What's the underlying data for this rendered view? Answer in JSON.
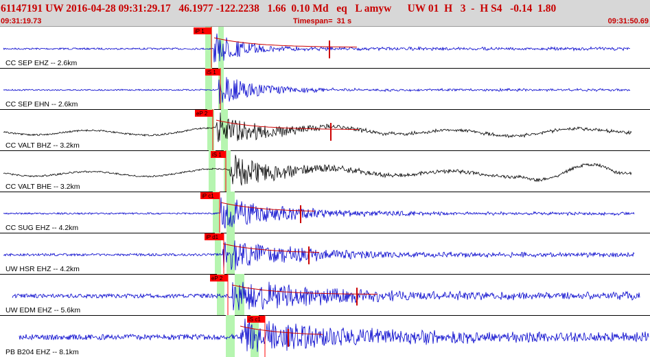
{
  "header": {
    "title": "61147191 UW 2016-04-28 09:31:29.17   46.1977 -122.2238   1.66  0.10 Md   eq   L amyw      UW 01  H   3  -  H S4   -0.14  1.80",
    "start_time": "09:31:19.73",
    "timespan": "Timespan=  31 s",
    "end_time": "09:31:50.69"
  },
  "colors": {
    "header_text": "#c80000",
    "trace_blue": "#0000cc",
    "trace_black": "#000000",
    "pick_flag": "#ff0000",
    "window_band": "#b6f5b0",
    "model_curve": "#cc0000"
  },
  "panels": [
    {
      "label": "CC SEP EHZ -- 2.6km",
      "trace_color": "blue",
      "amplitude": 2.5,
      "pick": "iP 1"
    },
    {
      "label": "CC SEP EHN -- 2.6km",
      "trace_color": "blue",
      "amplitude": 2,
      "pick": "iS 1"
    },
    {
      "label": "CC VALT BHZ -- 3.2km",
      "trace_color": "black",
      "amplitude": 3,
      "pick": "eP 2"
    },
    {
      "label": "CC VALT BHE -- 3.2km",
      "trace_color": "black",
      "amplitude": 3,
      "pick": "iS 1"
    },
    {
      "label": "CC SUG EHZ -- 4.2km",
      "trace_color": "blue",
      "amplitude": 2.5,
      "pick": "iP c1"
    },
    {
      "label": "UW HSR EHZ -- 4.2km",
      "trace_color": "blue",
      "amplitude": 3.5,
      "pick": "iP d1"
    },
    {
      "label": "UW EDM EHZ -- 5.6km",
      "trace_color": "blue",
      "amplitude": 6,
      "pick": "eP 2"
    },
    {
      "label": "PB B204 EHZ -- 8.1km",
      "trace_color": "blue",
      "amplitude": 8,
      "pick": "iS c1"
    }
  ]
}
